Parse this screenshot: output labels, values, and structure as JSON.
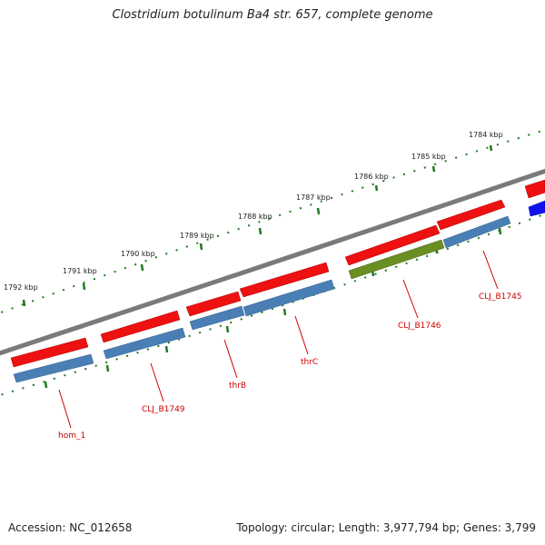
{
  "title": "Clostridium botulinum Ba4 str. 657, complete genome",
  "accession": "Accession: NC_012658",
  "topology": "Topology: circular; Length: 3,977,794 bp; Genes: 3,799",
  "ruler": {
    "tick_labels": [
      "1784 kbp",
      "1785 kbp",
      "1786 kbp",
      "1787 kbp",
      "1788 kbp",
      "1789 kbp",
      "1790 kbp",
      "1791 kbp",
      "1792 kbp"
    ]
  },
  "gene_labels": [
    "CLJ_B1745",
    "CLJ_B1746",
    "thrC",
    "thrB",
    "CLJ_B1749",
    "hom_1"
  ],
  "colors": {
    "backbone": "#7a7a7a",
    "ruler_ticks": "#1f7a1f",
    "forward_genes": "#ee1111",
    "cds_features": "#4a7fb5",
    "highlight_feature": "#6b8e23",
    "partial_feature": "#1111ee",
    "label_text": "#cc0000"
  }
}
